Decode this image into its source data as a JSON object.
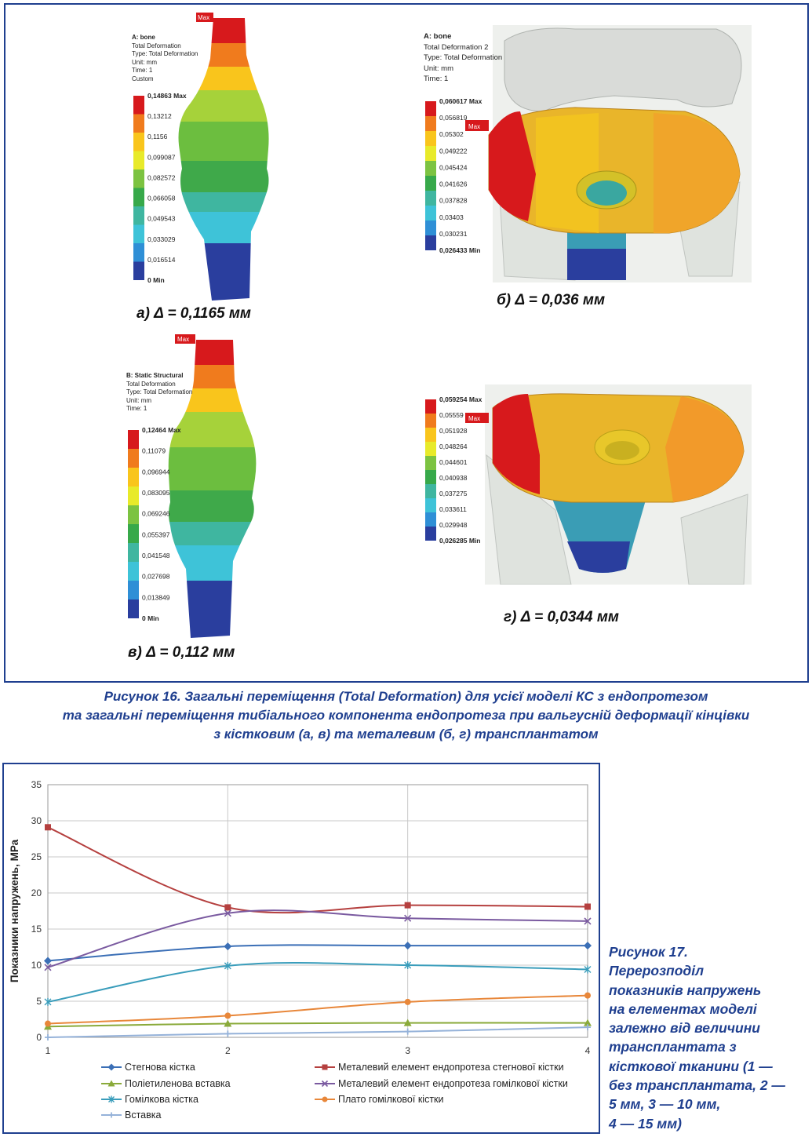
{
  "figure16": {
    "panels": [
      {
        "meta": [
          "A: bone",
          "Total Deformation",
          "Type: Total Deformation",
          "Unit: mm",
          "Time: 1",
          "Custom"
        ],
        "scale": [
          "0,14863 Max",
          "0,13212",
          "0,1156",
          "0,099087",
          "0,082572",
          "0,066058",
          "0,049543",
          "0,033029",
          "0,016514",
          "0 Min"
        ],
        "max_tag": "Max",
        "caption": "а) Δ = 0,1165 мм"
      },
      {
        "meta": [
          "A: bone",
          "Total Deformation 2",
          "Type: Total Deformation",
          "Unit: mm",
          "Time: 1"
        ],
        "scale": [
          "0,060617 Max",
          "0,056819",
          "0,05302",
          "0,049222",
          "0,045424",
          "0,041626",
          "0,037828",
          "0,03403",
          "0,030231",
          "0,026433 Min"
        ],
        "max_tag": "Max",
        "caption": "б) Δ = 0,036 мм"
      },
      {
        "meta": [
          "B: Static Structural",
          "Total Deformation",
          "Type: Total Deformation",
          "Unit: mm",
          "Time: 1"
        ],
        "scale": [
          "0,12464 Max",
          "0,11079",
          "0,096944",
          "0,083095",
          "0,069246",
          "0,055397",
          "0,041548",
          "0,027698",
          "0,013849",
          "0 Min"
        ],
        "max_tag": "Max",
        "caption": "в) Δ = 0,112 мм"
      },
      {
        "meta": [],
        "scale": [
          "0,059254 Max",
          "0,05559",
          "0,051928",
          "0,048264",
          "0,044601",
          "0,040938",
          "0,037275",
          "0,033611",
          "0,029948",
          "0,026285 Min"
        ],
        "max_tag": "Max",
        "caption": "г) Δ = 0,0344 мм"
      }
    ],
    "scale_colors": [
      "#d7191c",
      "#f07b1d",
      "#f9c51c",
      "#e8ea2a",
      "#7cc341",
      "#37a94a",
      "#3fb6a0",
      "#3ec3d8",
      "#2f8fd6",
      "#2a3e9e"
    ],
    "caption_lines": [
      "Рисунок 16. Загальні переміщення (Total Deformation) для усієї моделі КС з ендопротезом",
      "та загальні переміщення тибіального компонента ендопротеза при вальгусній деформації кінцівки",
      "з кістковим (а, в) та металевим (б, г) трансплантатом"
    ]
  },
  "figure17": {
    "caption_lines": [
      "Рисунок 17.",
      "Перерозподіл",
      "показників напружень",
      "на елементах моделі",
      "залежно від величини",
      "трансплантата з",
      "кісткової тканини (1 —",
      "без трансплантата, 2 —",
      "5 мм, 3 — 10 мм,",
      "4 — 15 мм)"
    ]
  },
  "chart_data": {
    "type": "line",
    "ylabel": "Показники напружень, МРа",
    "xlabel": "",
    "x": [
      1,
      2,
      3,
      4
    ],
    "xticks": [
      "1",
      "2",
      "3",
      "4"
    ],
    "ylim": [
      0,
      35
    ],
    "yticks": [
      "0",
      "5",
      "10",
      "15",
      "20",
      "25",
      "30",
      "35"
    ],
    "grid": true,
    "legend_position": "bottom",
    "series": [
      {
        "name": "Стегнова кістка",
        "values": [
          10.6,
          12.6,
          12.7,
          12.7
        ],
        "color": "#3b6fb6",
        "marker": "diamond"
      },
      {
        "name": "Металевий елемент ендопротеза стегнової кістки",
        "values": [
          29.1,
          18.0,
          18.3,
          18.1
        ],
        "color": "#b5403f",
        "marker": "square"
      },
      {
        "name": "Поліетиленова вставка",
        "values": [
          1.5,
          1.9,
          2.0,
          2.0
        ],
        "color": "#8aaa3a",
        "marker": "triangle"
      },
      {
        "name": "Металевий елемент ендопротеза гомілкової кістки",
        "values": [
          9.7,
          17.2,
          16.5,
          16.1
        ],
        "color": "#7a5aa0",
        "marker": "x"
      },
      {
        "name": "Гомілкова кістка",
        "values": [
          4.9,
          9.9,
          10.0,
          9.4
        ],
        "color": "#3a9dbb",
        "marker": "star"
      },
      {
        "name": "Плато гомілкової кістки",
        "values": [
          1.9,
          3.0,
          4.9,
          5.8
        ],
        "color": "#e8873a",
        "marker": "circle"
      },
      {
        "name": "Вставка",
        "values": [
          0.0,
          0.5,
          0.8,
          1.4
        ],
        "color": "#95b2d9",
        "marker": "plus"
      }
    ]
  }
}
